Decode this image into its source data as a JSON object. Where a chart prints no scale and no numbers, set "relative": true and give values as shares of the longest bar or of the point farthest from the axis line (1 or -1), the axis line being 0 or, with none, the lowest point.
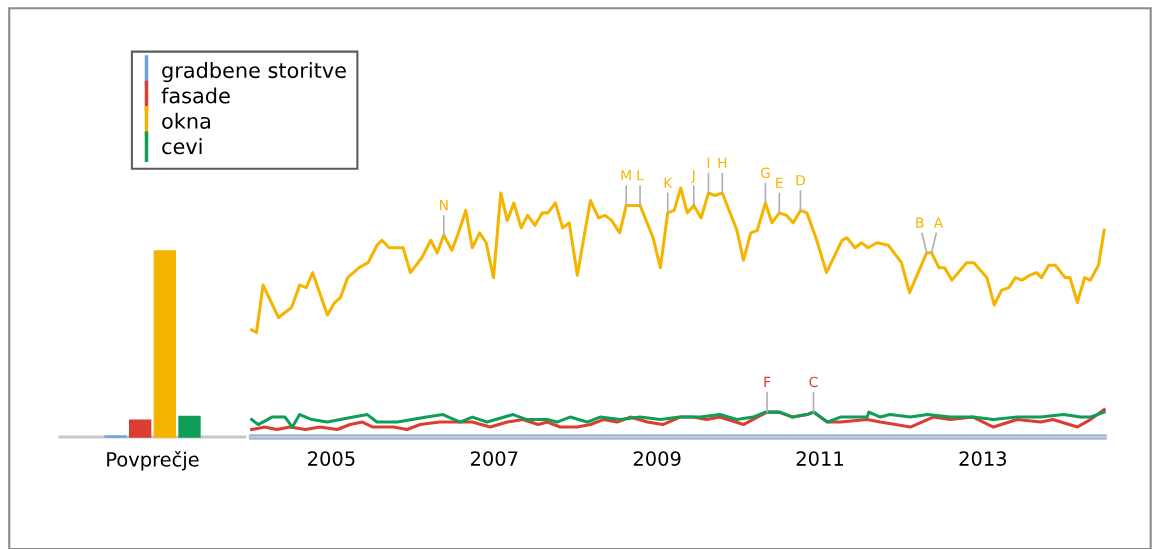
{
  "chart_data": [
    {
      "type": "bar",
      "categories": [
        "Povprečje"
      ],
      "relative": true,
      "tick_labels": "x",
      "legend": "top right",
      "series": [
        {
          "name": "gradbene storitve",
          "color": "#6d9eeb",
          "values": [
            0.005
          ]
        },
        {
          "name": "fasade",
          "color": "#dc3c32",
          "values": [
            0.09
          ]
        },
        {
          "name": "okna",
          "color": "#f4b400",
          "values": [
            1
          ]
        },
        {
          "name": "cevi",
          "color": "#0f9d58",
          "values": [
            0.11
          ]
        }
      ]
    },
    {
      "type": "line",
      "relative": true,
      "tick_labels": "x",
      "xlim": [
        2004,
        2014.5
      ],
      "xticks": [
        2005,
        2007,
        2009,
        2011,
        2013
      ],
      "series": [
        {
          "color": "#6d9eeb",
          "x": [
            2004.02,
            2014.49
          ],
          "values": [
            0,
            0
          ]
        },
        {
          "color": "#dc3c32",
          "x": [
            2004.02,
            2004.18,
            2004.33,
            2004.49,
            2004.68,
            2004.86,
            2005.07,
            2005.23,
            2005.38,
            2005.51,
            2005.76,
            2005.93,
            2006.09,
            2006.33,
            2006.58,
            2006.73,
            2006.95,
            2007.16,
            2007.35,
            2007.54,
            2007.65,
            2007.81,
            2008.02,
            2008.18,
            2008.34,
            2008.51,
            2008.67,
            2008.88,
            2009.07,
            2009.28,
            2009.44,
            2009.61,
            2009.77,
            2010.06,
            2010.23,
            2010.35,
            2010.49,
            2010.67,
            2010.84,
            2010.92,
            2011.09,
            2011.25,
            2011.58,
            2011.74,
            2012.11,
            2012.39,
            2012.6,
            2012.88,
            2013.13,
            2013.42,
            2013.71,
            2013.86,
            2014.16,
            2014.32,
            2014.49
          ],
          "values": [
            0.03,
            0.04,
            0.03,
            0.04,
            0.03,
            0.04,
            0.03,
            0.05,
            0.06,
            0.04,
            0.04,
            0.03,
            0.05,
            0.06,
            0.06,
            0.06,
            0.04,
            0.06,
            0.07,
            0.05,
            0.06,
            0.04,
            0.04,
            0.05,
            0.07,
            0.06,
            0.08,
            0.06,
            0.05,
            0.08,
            0.08,
            0.07,
            0.08,
            0.05,
            0.08,
            0.1,
            0.1,
            0.08,
            0.09,
            0.1,
            0.06,
            0.06,
            0.07,
            0.06,
            0.04,
            0.08,
            0.07,
            0.08,
            0.04,
            0.07,
            0.06,
            0.07,
            0.04,
            0.07,
            0.11
          ]
        },
        {
          "color": "#f4b400",
          "x": [
            2004.02,
            2004.08,
            2004.16,
            2004.35,
            2004.51,
            2004.61,
            2004.69,
            2004.77,
            2004.95,
            2005.04,
            2005.11,
            2005.2,
            2005.34,
            2005.45,
            2005.56,
            2005.62,
            2005.71,
            2005.8,
            2005.88,
            2005.97,
            2006.11,
            2006.22,
            2006.3,
            2006.38,
            2006.48,
            2006.56,
            2006.65,
            2006.73,
            2006.82,
            2006.9,
            2006.99,
            2007.08,
            2007.16,
            2007.24,
            2007.33,
            2007.41,
            2007.5,
            2007.59,
            2007.66,
            2007.75,
            2007.84,
            2007.92,
            2008.02,
            2008.18,
            2008.28,
            2008.36,
            2008.44,
            2008.54,
            2008.62,
            2008.71,
            2008.79,
            2008.95,
            2009.04,
            2009.13,
            2009.21,
            2009.29,
            2009.37,
            2009.45,
            2009.54,
            2009.63,
            2009.71,
            2009.8,
            2009.98,
            2010.06,
            2010.15,
            2010.23,
            2010.33,
            2010.41,
            2010.5,
            2010.59,
            2010.67,
            2010.76,
            2010.84,
            2010.96,
            2011.08,
            2011.27,
            2011.33,
            2011.43,
            2011.51,
            2011.59,
            2011.7,
            2011.84,
            2012.0,
            2012.1,
            2012.31,
            2012.37,
            2012.46,
            2012.53,
            2012.62,
            2012.8,
            2012.89,
            2013.05,
            2013.14,
            2013.23,
            2013.32,
            2013.4,
            2013.48,
            2013.58,
            2013.66,
            2013.72,
            2013.81,
            2013.89,
            2014.01,
            2014.07,
            2014.16,
            2014.25,
            2014.32,
            2014.42,
            2014.49
          ],
          "values": [
            0.43,
            0.42,
            0.61,
            0.48,
            0.52,
            0.61,
            0.6,
            0.66,
            0.49,
            0.54,
            0.56,
            0.64,
            0.68,
            0.7,
            0.77,
            0.79,
            0.76,
            0.76,
            0.76,
            0.66,
            0.72,
            0.79,
            0.74,
            0.81,
            0.75,
            0.82,
            0.91,
            0.76,
            0.82,
            0.78,
            0.64,
            0.98,
            0.87,
            0.94,
            0.84,
            0.89,
            0.85,
            0.9,
            0.9,
            0.94,
            0.84,
            0.86,
            0.65,
            0.95,
            0.88,
            0.89,
            0.87,
            0.82,
            0.93,
            0.93,
            0.93,
            0.8,
            0.68,
            0.9,
            0.91,
            1.0,
            0.9,
            0.93,
            0.88,
            0.98,
            0.97,
            0.98,
            0.83,
            0.71,
            0.82,
            0.83,
            0.94,
            0.86,
            0.9,
            0.89,
            0.86,
            0.91,
            0.9,
            0.79,
            0.66,
            0.79,
            0.8,
            0.76,
            0.78,
            0.76,
            0.78,
            0.77,
            0.7,
            0.58,
            0.74,
            0.74,
            0.68,
            0.68,
            0.63,
            0.7,
            0.7,
            0.64,
            0.53,
            0.59,
            0.6,
            0.64,
            0.63,
            0.65,
            0.66,
            0.64,
            0.69,
            0.69,
            0.64,
            0.64,
            0.54,
            0.64,
            0.63,
            0.69,
            0.83
          ]
        },
        {
          "color": "#0f9d58",
          "x": [
            2004.02,
            2004.1,
            2004.27,
            2004.43,
            2004.52,
            2004.61,
            2004.76,
            2004.95,
            2005.27,
            2005.44,
            2005.56,
            2005.81,
            2006.17,
            2006.37,
            2006.58,
            2006.73,
            2006.91,
            2007.23,
            2007.4,
            2007.65,
            2007.77,
            2007.93,
            2008.14,
            2008.3,
            2008.55,
            2008.79,
            2009.04,
            2009.28,
            2009.53,
            2009.77,
            2009.98,
            2010.18,
            2010.33,
            2010.51,
            2010.66,
            2010.84,
            2010.92,
            2011.09,
            2011.25,
            2011.58,
            2011.6,
            2011.74,
            2011.86,
            2012.11,
            2012.32,
            2012.6,
            2012.88,
            2013.13,
            2013.42,
            2013.71,
            2013.99,
            2014.2,
            2014.32,
            2014.49
          ],
          "values": [
            0.07,
            0.05,
            0.08,
            0.08,
            0.04,
            0.09,
            0.07,
            0.06,
            0.08,
            0.09,
            0.06,
            0.06,
            0.08,
            0.09,
            0.06,
            0.08,
            0.06,
            0.09,
            0.07,
            0.07,
            0.06,
            0.08,
            0.06,
            0.08,
            0.07,
            0.08,
            0.07,
            0.08,
            0.08,
            0.09,
            0.07,
            0.08,
            0.1,
            0.1,
            0.08,
            0.09,
            0.1,
            0.06,
            0.08,
            0.08,
            0.1,
            0.08,
            0.09,
            0.08,
            0.09,
            0.08,
            0.08,
            0.07,
            0.08,
            0.08,
            0.09,
            0.08,
            0.08,
            0.1
          ]
        }
      ],
      "annotations": [
        {
          "text": "N",
          "x": 2006.38,
          "y": 0.81
        },
        {
          "text": "M",
          "x": 2008.62,
          "y": 0.93
        },
        {
          "text": "L",
          "x": 2008.79,
          "y": 0.93
        },
        {
          "text": "K",
          "x": 2009.13,
          "y": 0.9
        },
        {
          "text": "J",
          "x": 2009.45,
          "y": 0.93
        },
        {
          "text": "I",
          "x": 2009.63,
          "y": 0.98
        },
        {
          "text": "H",
          "x": 2009.8,
          "y": 0.98
        },
        {
          "text": "G",
          "x": 2010.33,
          "y": 0.94
        },
        {
          "text": "F",
          "x": 2010.35,
          "y": 0.1
        },
        {
          "text": "E",
          "x": 2010.5,
          "y": 0.9
        },
        {
          "text": "D",
          "x": 2010.76,
          "y": 0.91
        },
        {
          "text": "C",
          "x": 2010.92,
          "y": 0.1
        },
        {
          "text": "B",
          "x": 2012.31,
          "y": 0.74
        },
        {
          "text": "A",
          "x": 2012.37,
          "y": 0.74
        }
      ]
    }
  ]
}
